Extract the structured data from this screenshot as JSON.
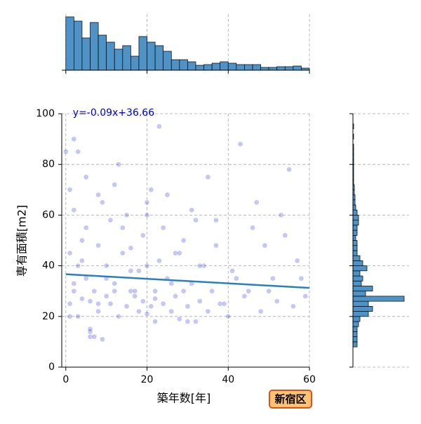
{
  "chart_data": [
    {
      "type": "scatter",
      "xlabel": "築年数[年]",
      "ylabel": "専有面積[m2]",
      "color": "#0000cc",
      "grid": true,
      "xlim": [
        -1,
        60
      ],
      "ylim": [
        0,
        100
      ],
      "xticks": [
        0,
        20,
        40,
        60
      ],
      "yticks": [
        0,
        20,
        40,
        60,
        80,
        100
      ],
      "x": [
        1,
        1,
        2,
        2,
        3,
        3,
        4,
        5,
        5,
        6,
        6,
        7,
        8,
        8,
        9,
        10,
        10,
        11,
        12,
        13,
        14,
        15,
        16,
        17,
        18,
        18,
        19,
        20,
        20,
        21,
        22,
        22,
        23,
        24,
        25,
        26,
        27,
        28,
        29,
        30,
        31,
        32,
        33,
        34,
        35,
        36,
        37,
        38,
        40,
        42,
        44,
        46,
        48,
        50,
        52,
        54,
        56,
        58,
        59,
        1,
        3,
        5,
        7,
        9,
        11,
        13,
        15,
        17,
        19,
        21,
        23,
        25,
        27,
        29,
        31,
        33,
        35,
        37,
        39,
        41,
        43,
        45,
        47,
        49,
        51,
        53,
        55,
        57,
        2,
        4,
        6,
        8,
        10,
        12,
        14,
        16,
        20,
        24,
        28,
        32,
        0,
        1,
        2,
        4,
        6,
        8,
        12,
        16,
        20,
        22,
        26,
        30
      ],
      "y": [
        25,
        45,
        30,
        62,
        20,
        40,
        27,
        35,
        55,
        26,
        12,
        30,
        22,
        48,
        11,
        28,
        40,
        25,
        33,
        20,
        45,
        24,
        30,
        28,
        22,
        38,
        26,
        21,
        60,
        24,
        30,
        18,
        42,
        25,
        35,
        22,
        28,
        19,
        30,
        24,
        33,
        18,
        26,
        40,
        22,
        30,
        48,
        25,
        20,
        35,
        28,
        55,
        22,
        30,
        26,
        52,
        24,
        35,
        28,
        70,
        85,
        75,
        12,
        65,
        58,
        80,
        60,
        30,
        52,
        70,
        95,
        68,
        45,
        50,
        62,
        40,
        75,
        58,
        25,
        38,
        88,
        30,
        65,
        48,
        35,
        60,
        78,
        42,
        90,
        50,
        14,
        68,
        35,
        72,
        55,
        38,
        65,
        55,
        45,
        58,
        85,
        20,
        33,
        42,
        15,
        25,
        30,
        47,
        40,
        27,
        33,
        18
      ],
      "fit": {
        "label": "y=-0.09x+36.66",
        "x": [
          0,
          60
        ],
        "y": [
          36.66,
          31.26
        ],
        "color": "#2a7fc0"
      },
      "annotation": "新宿区"
    },
    {
      "type": "histogram",
      "orientation": "vertical",
      "color": "#4f93c6",
      "xlim": [
        -1,
        60
      ],
      "ylim": [
        0,
        80
      ],
      "xticks": [
        0,
        20,
        40,
        60
      ],
      "bins": [
        0,
        2,
        4,
        6,
        8,
        10,
        12,
        14,
        16,
        18,
        20,
        22,
        24,
        26,
        28,
        30,
        32,
        34,
        36,
        38,
        40,
        42,
        44,
        46,
        48,
        50,
        52,
        54,
        56,
        58,
        60
      ],
      "counts": [
        76,
        70,
        46,
        68,
        50,
        40,
        30,
        35,
        20,
        48,
        40,
        35,
        27,
        15,
        15,
        12,
        7,
        8,
        10,
        12,
        10,
        8,
        8,
        8,
        4,
        4,
        5,
        5,
        6,
        3
      ]
    },
    {
      "type": "histogram",
      "orientation": "horizontal",
      "color": "#4f93c6",
      "ylim": [
        0,
        100
      ],
      "xlim": [
        0,
        80
      ],
      "yticks": [
        0,
        20,
        40,
        60,
        80,
        100
      ],
      "bins": [
        0,
        2,
        4,
        6,
        8,
        10,
        12,
        14,
        16,
        18,
        20,
        22,
        24,
        26,
        28,
        30,
        32,
        34,
        36,
        38,
        40,
        42,
        44,
        46,
        48,
        50,
        52,
        54,
        56,
        58,
        60,
        62,
        64,
        66,
        68,
        70,
        72,
        74,
        76,
        78,
        80,
        82,
        84,
        86,
        88,
        90,
        92,
        94,
        96,
        98,
        100
      ],
      "counts": [
        0,
        0,
        0,
        0,
        6,
        6,
        6,
        6,
        8,
        10,
        22,
        28,
        22,
        73,
        18,
        28,
        12,
        14,
        10,
        20,
        14,
        10,
        6,
        6,
        6,
        4,
        6,
        6,
        8,
        8,
        6,
        4,
        3,
        3,
        2,
        2,
        1,
        1,
        1,
        1,
        1,
        1,
        1,
        1,
        0,
        1,
        0,
        1,
        0,
        0
      ]
    }
  ]
}
